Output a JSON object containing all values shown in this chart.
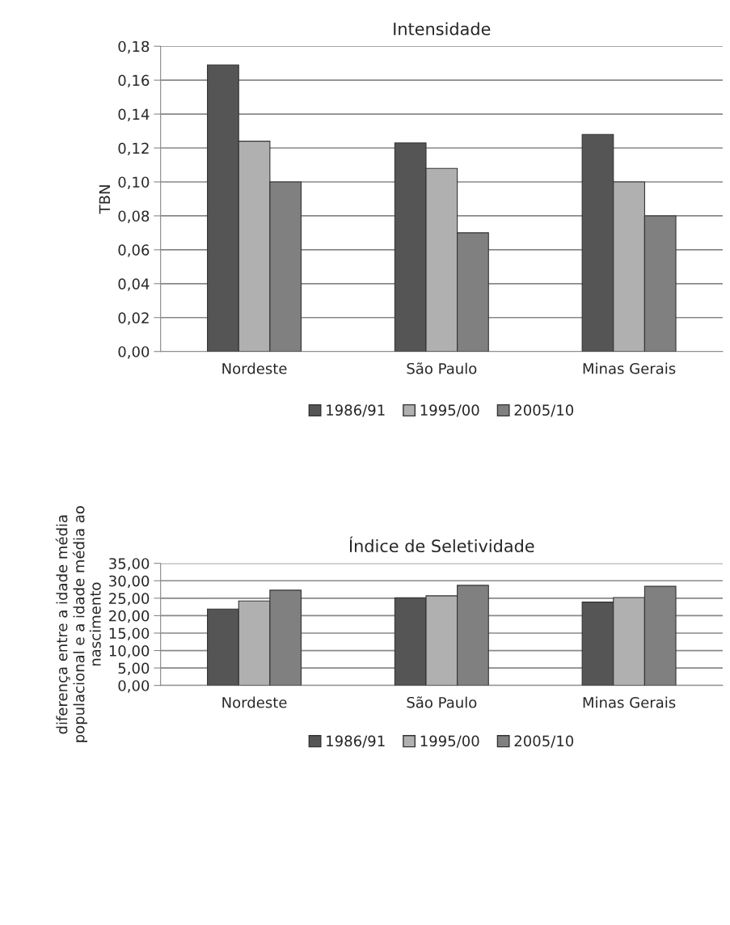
{
  "chart_data": [
    {
      "type": "bar",
      "title": "Intensidade",
      "ylabel": "TBN",
      "categories": [
        "Nordeste",
        "São Paulo",
        "Minas Gerais"
      ],
      "series": [
        {
          "name": "1986/91",
          "color": "#555555",
          "values": [
            0.169,
            0.123,
            0.128
          ]
        },
        {
          "name": "1995/00",
          "color": "#b0b0b0",
          "values": [
            0.124,
            0.108,
            0.1
          ]
        },
        {
          "name": "2005/10",
          "color": "#808080",
          "values": [
            0.1,
            0.07,
            0.08
          ]
        }
      ],
      "ylim": [
        0,
        0.18
      ],
      "yticks": [
        {
          "value": 0,
          "label": "0,00"
        },
        {
          "value": 0.02,
          "label": "0,02"
        },
        {
          "value": 0.04,
          "label": "0,04"
        },
        {
          "value": 0.06,
          "label": "0,06"
        },
        {
          "value": 0.08,
          "label": "0,08"
        },
        {
          "value": 0.1,
          "label": "0,10"
        },
        {
          "value": 0.12,
          "label": "0,12"
        },
        {
          "value": 0.14,
          "label": "0,14"
        },
        {
          "value": 0.16,
          "label": "0,16"
        },
        {
          "value": 0.18,
          "label": "0,18"
        }
      ],
      "grid": "y",
      "legend": "bottom"
    },
    {
      "type": "bar",
      "title": "Índice de Seletividade",
      "ylabel": "diferença entre a idade média\npopulacional e a idade média ao\nnascimento",
      "categories": [
        "Nordeste",
        "São Paulo",
        "Minas Gerais"
      ],
      "series": [
        {
          "name": "1986/91",
          "color": "#555555",
          "values": [
            21.9,
            25.1,
            23.9
          ]
        },
        {
          "name": "1995/00",
          "color": "#b0b0b0",
          "values": [
            24.2,
            25.7,
            25.2
          ]
        },
        {
          "name": "2005/10",
          "color": "#808080",
          "values": [
            27.3,
            28.7,
            28.4
          ]
        }
      ],
      "ylim": [
        0,
        35
      ],
      "yticks": [
        {
          "value": 0,
          "label": "0,00"
        },
        {
          "value": 5,
          "label": "5,00"
        },
        {
          "value": 10,
          "label": "10,00"
        },
        {
          "value": 15,
          "label": "15,00"
        },
        {
          "value": 20,
          "label": "20,00"
        },
        {
          "value": 25,
          "label": "25,00"
        },
        {
          "value": 30,
          "label": "30,00"
        },
        {
          "value": 35,
          "label": "35,00"
        }
      ],
      "grid": "y",
      "legend": "bottom"
    }
  ]
}
